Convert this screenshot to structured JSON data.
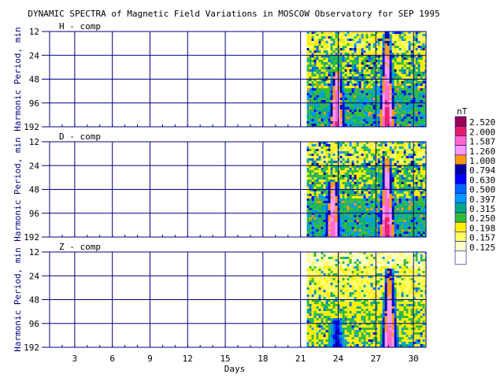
{
  "chart_data": {
    "type": "heatmap",
    "title": "DYNAMIC SPECTRA of Magnetic Field Variations in MOSCOW Observatory for SEP 1995",
    "xlabel": "Days",
    "ylabel": "Harmonic Period, min",
    "x_range": [
      1,
      31
    ],
    "x_ticks": [
      "3",
      "6",
      "9",
      "12",
      "15",
      "18",
      "21",
      "24",
      "27",
      "30"
    ],
    "y_ticks": [
      "12",
      "24",
      "48",
      "96",
      "192"
    ],
    "y_scale": "log2",
    "grid": true,
    "data_start_day": 21.5,
    "panels": [
      {
        "label": "H - comp",
        "background": "yellow-green mix with blue period bands",
        "events": [
          {
            "day": 23.8,
            "peak_nT": 2.0,
            "period_range_min": [
              48,
              192
            ]
          },
          {
            "day": 27.8,
            "peak_nT": 2.52,
            "period_range_min": [
              12,
              192
            ]
          }
        ]
      },
      {
        "label": "D - comp",
        "background": "yellow-green with recurring blue stripes",
        "events": [
          {
            "day": 23.5,
            "peak_nT": 2.0,
            "period_range_min": [
              48,
              192
            ]
          },
          {
            "day": 27.8,
            "peak_nT": 2.52,
            "period_range_min": [
              24,
              192
            ]
          }
        ]
      },
      {
        "label": "Z - comp",
        "background": "yellow mostly, weaker activity",
        "events": [
          {
            "day": 23.8,
            "peak_nT": 0.794,
            "period_range_min": [
              96,
              192
            ]
          },
          {
            "day": 28.0,
            "peak_nT": 2.0,
            "period_range_min": [
              24,
              192
            ]
          }
        ]
      }
    ],
    "colorbar": {
      "unit": "nT",
      "levels": [
        "2.520",
        "2.000",
        "1.587",
        "1.260",
        "1.000",
        "0.794",
        "0.630",
        "0.500",
        "0.397",
        "0.315",
        "0.250",
        "0.198",
        "0.157",
        "0.125"
      ],
      "colors": [
        "#990050",
        "#e81d6a",
        "#ff66cc",
        "#ff99ff",
        "#ff9900",
        "#0000a0",
        "#0000ff",
        "#0066ff",
        "#0099ff",
        "#00aa88",
        "#33bb33",
        "#ffee00",
        "#ffff66",
        "#ffffcc"
      ]
    },
    "colors": {
      "grid": "#000080",
      "text": "#000080",
      "tick": "#000080"
    }
  }
}
